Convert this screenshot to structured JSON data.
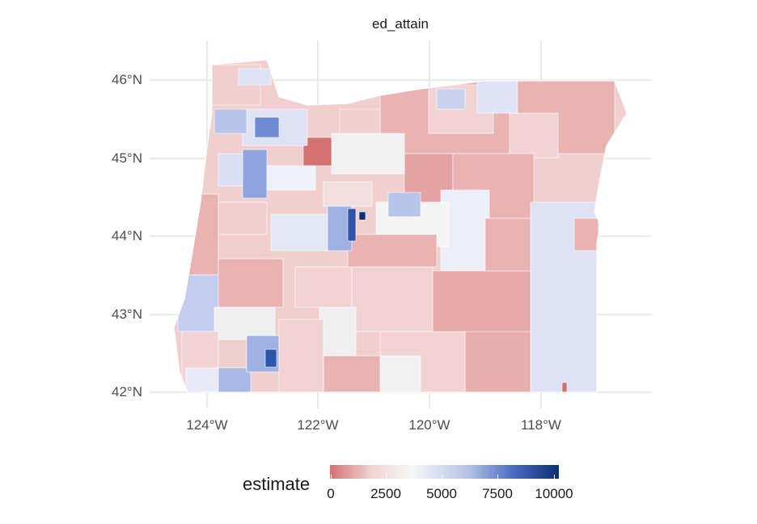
{
  "panel": {
    "strip_title": "ed_attain"
  },
  "axes": {
    "y_ticks": [
      "46°N",
      "45°N",
      "44°N",
      "43°N",
      "42°N"
    ],
    "x_ticks": [
      "124°W",
      "122°W",
      "120°W",
      "118°W"
    ],
    "grid": true
  },
  "legend": {
    "title": "estimate",
    "ticks": [
      "0",
      "2500",
      "5000",
      "7500",
      "10000"
    ],
    "range": [
      0,
      10000
    ],
    "colors": {
      "low": "#d27272",
      "mid": "#f7f7f7",
      "high": "#0b2f75"
    }
  },
  "colors": {
    "gridline": "#ebebeb",
    "region_low": "#e7a8a8",
    "region_pale": "#f2d4d4",
    "region_neutral": "#f3f3f3",
    "region_light_blue": "#dde2f4",
    "region_blue": "#9fb1e3",
    "region_dark_blue": "#2d56aa"
  }
}
